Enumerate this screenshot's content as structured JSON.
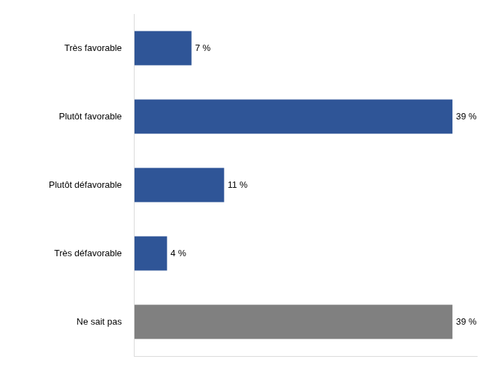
{
  "chart_data": {
    "type": "bar",
    "orientation": "horizontal",
    "categories": [
      "Très favorable",
      "Plutôt favorable",
      "Plutôt défavorable",
      "Très défavorable",
      "Ne sait pas"
    ],
    "values": [
      7,
      39,
      11,
      4,
      39
    ],
    "value_labels": [
      "7 %",
      "39 %",
      "11 %",
      "4 %",
      "39 %"
    ],
    "colors": [
      "#2f5597",
      "#2f5597",
      "#2f5597",
      "#2f5597",
      "#808080"
    ],
    "xlim": [
      0,
      42
    ],
    "grid": false,
    "data_labels": true,
    "tick_labels": "y"
  }
}
